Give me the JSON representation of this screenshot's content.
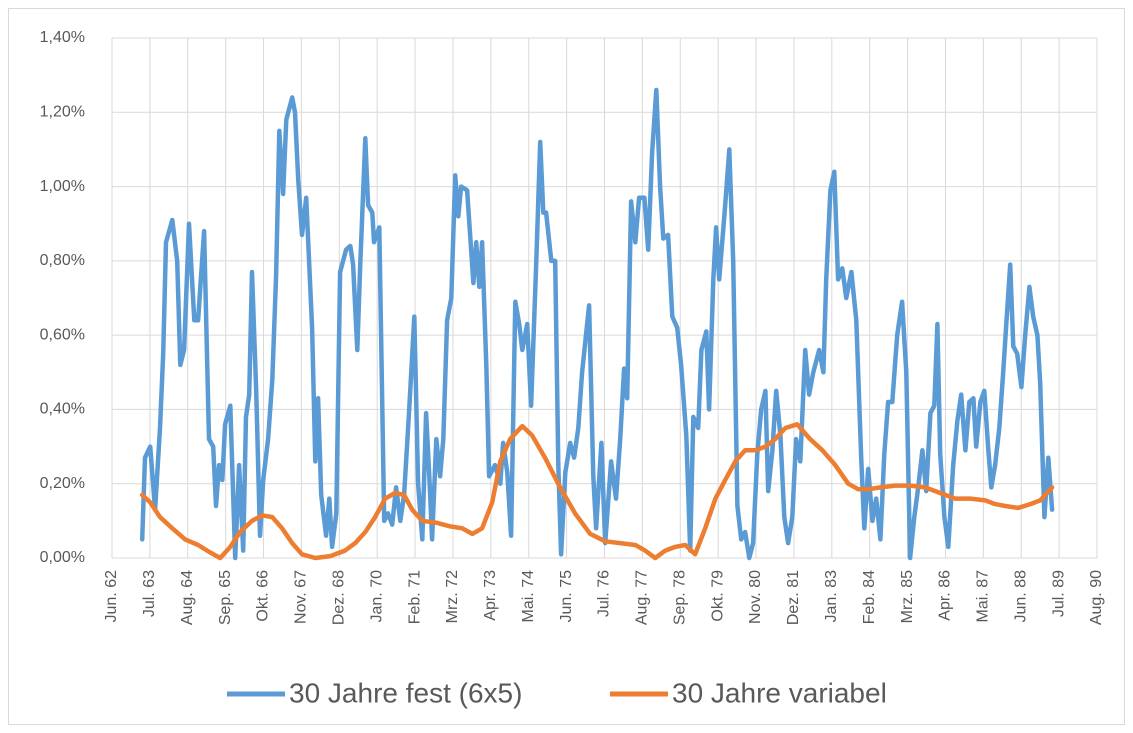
{
  "chart_data": {
    "type": "line",
    "xlim": [
      1962.417,
      1990.583
    ],
    "xticks": [
      {
        "value": 1962.417,
        "label": "Jun. 62"
      },
      {
        "value": 1963.5,
        "label": "Jul. 63"
      },
      {
        "value": 1964.583,
        "label": "Aug. 64"
      },
      {
        "value": 1965.667,
        "label": "Sep. 65"
      },
      {
        "value": 1966.75,
        "label": "Okt. 66"
      },
      {
        "value": 1967.833,
        "label": "Nov. 67"
      },
      {
        "value": 1968.917,
        "label": "Dez. 68"
      },
      {
        "value": 1970,
        "label": "Jan. 70"
      },
      {
        "value": 1971.083,
        "label": "Feb. 71"
      },
      {
        "value": 1972.167,
        "label": "Mrz. 72"
      },
      {
        "value": 1973.25,
        "label": "Apr. 73"
      },
      {
        "value": 1974.333,
        "label": "Mai. 74"
      },
      {
        "value": 1975.417,
        "label": "Jun. 75"
      },
      {
        "value": 1976.5,
        "label": "Jul. 76"
      },
      {
        "value": 1977.583,
        "label": "Aug. 77"
      },
      {
        "value": 1978.667,
        "label": "Sep. 78"
      },
      {
        "value": 1979.75,
        "label": "Okt. 79"
      },
      {
        "value": 1980.833,
        "label": "Nov. 80"
      },
      {
        "value": 1981.917,
        "label": "Dez. 81"
      },
      {
        "value": 1983,
        "label": "Jan. 83"
      },
      {
        "value": 1984.083,
        "label": "Feb. 84"
      },
      {
        "value": 1985.167,
        "label": "Mrz. 85"
      },
      {
        "value": 1986.25,
        "label": "Apr. 86"
      },
      {
        "value": 1987.333,
        "label": "Mai. 87"
      },
      {
        "value": 1988.417,
        "label": "Jun. 88"
      },
      {
        "value": 1989.5,
        "label": "Jul. 89"
      },
      {
        "value": 1990.583,
        "label": "Aug. 90"
      }
    ],
    "ylim": [
      0,
      1.4
    ],
    "yticks": [
      {
        "value": 0,
        "label": "0,00%"
      },
      {
        "value": 0.2,
        "label": "0,20%"
      },
      {
        "value": 0.4,
        "label": "0,40%"
      },
      {
        "value": 0.6,
        "label": "0,60%"
      },
      {
        "value": 0.8,
        "label": "0,80%"
      },
      {
        "value": 1.0,
        "label": "1,00%"
      },
      {
        "value": 1.2,
        "label": "1,20%"
      },
      {
        "value": 1.4,
        "label": "1,40%"
      }
    ],
    "grid": true,
    "legend": "bottom",
    "series": [
      {
        "name": "30 Jahre fest (6x5)",
        "color": "#5b9bd5",
        "x": [
          1963.28,
          1963.36,
          1963.51,
          1963.65,
          1963.79,
          1963.88,
          1963.96,
          1964.14,
          1964.28,
          1964.37,
          1964.48,
          1964.62,
          1964.77,
          1964.88,
          1965.05,
          1965.19,
          1965.31,
          1965.39,
          1965.48,
          1965.57,
          1965.65,
          1965.8,
          1965.94,
          1966.05,
          1966.17,
          1966.25,
          1966.34,
          1966.42,
          1966.54,
          1966.65,
          1966.74,
          1966.88,
          1967.0,
          1967.11,
          1967.2,
          1967.31,
          1967.4,
          1967.57,
          1967.65,
          1967.74,
          1967.85,
          1967.97,
          1968.14,
          1968.23,
          1968.31,
          1968.4,
          1968.54,
          1968.63,
          1968.71,
          1968.83,
          1968.94,
          1969.11,
          1969.23,
          1969.31,
          1969.43,
          1969.51,
          1969.66,
          1969.74,
          1969.86,
          1969.91,
          1970.06,
          1970.2,
          1970.31,
          1970.43,
          1970.54,
          1970.66,
          1970.77,
          1970.91,
          1971.06,
          1971.17,
          1971.29,
          1971.4,
          1971.49,
          1971.57,
          1971.69,
          1971.8,
          1971.89,
          1972.0,
          1972.12,
          1972.23,
          1972.32,
          1972.4,
          1972.57,
          1972.75,
          1972.83,
          1972.92,
          1973.0,
          1973.12,
          1973.2,
          1973.37,
          1973.52,
          1973.6,
          1973.72,
          1973.83,
          1973.95,
          1974.06,
          1974.15,
          1974.29,
          1974.4,
          1974.55,
          1974.66,
          1974.75,
          1974.83,
          1974.98,
          1975.09,
          1975.18,
          1975.26,
          1975.38,
          1975.52,
          1975.63,
          1975.75,
          1975.86,
          1976.06,
          1976.18,
          1976.26,
          1976.41,
          1976.52,
          1976.69,
          1976.83,
          1976.95,
          1977.06,
          1977.15,
          1977.26,
          1977.38,
          1977.49,
          1977.64,
          1977.75,
          1977.86,
          1977.98,
          1978.09,
          1978.18,
          1978.32,
          1978.44,
          1978.58,
          1978.69,
          1978.84,
          1978.95,
          1979.04,
          1979.18,
          1979.27,
          1979.41,
          1979.49,
          1979.61,
          1979.69,
          1979.78,
          1979.95,
          1980.07,
          1980.18,
          1980.3,
          1980.41,
          1980.52,
          1980.64,
          1980.75,
          1980.87,
          1980.98,
          1981.1,
          1981.18,
          1981.3,
          1981.41,
          1981.53,
          1981.64,
          1981.75,
          1981.87,
          1981.98,
          1982.1,
          1982.24,
          1982.35,
          1982.47,
          1982.64,
          1982.76,
          1982.84,
          1982.96,
          1983.07,
          1983.18,
          1983.3,
          1983.41,
          1983.56,
          1983.7,
          1983.84,
          1983.93,
          1984.04,
          1984.16,
          1984.27,
          1984.39,
          1984.5,
          1984.61,
          1984.73,
          1984.87,
          1985.01,
          1985.13,
          1985.24,
          1985.36,
          1985.47,
          1985.59,
          1985.7,
          1985.82,
          1985.93,
          1986.02,
          1986.1,
          1986.22,
          1986.33,
          1986.47,
          1986.59,
          1986.7,
          1986.82,
          1986.93,
          1987.05,
          1987.13,
          1987.25,
          1987.36,
          1987.47,
          1987.56,
          1987.67,
          1987.79,
          1987.9,
          1987.99,
          1988.1,
          1988.19,
          1988.3,
          1988.42,
          1988.53,
          1988.65,
          1988.76,
          1988.88,
          1988.96,
          1989.08,
          1989.19,
          1989.3
        ],
        "values": [
          0.05,
          0.27,
          0.3,
          0.13,
          0.35,
          0.55,
          0.85,
          0.91,
          0.8,
          0.52,
          0.56,
          0.9,
          0.64,
          0.64,
          0.88,
          0.32,
          0.3,
          0.14,
          0.25,
          0.21,
          0.36,
          0.41,
          0.0,
          0.25,
          0.02,
          0.38,
          0.44,
          0.77,
          0.45,
          0.06,
          0.21,
          0.32,
          0.48,
          0.76,
          1.15,
          0.98,
          1.18,
          1.24,
          1.2,
          1.02,
          0.87,
          0.97,
          0.62,
          0.26,
          0.43,
          0.17,
          0.06,
          0.16,
          0.03,
          0.12,
          0.77,
          0.83,
          0.84,
          0.79,
          0.56,
          0.78,
          1.13,
          0.95,
          0.93,
          0.85,
          0.89,
          0.1,
          0.12,
          0.09,
          0.19,
          0.1,
          0.17,
          0.39,
          0.65,
          0.2,
          0.05,
          0.39,
          0.22,
          0.05,
          0.32,
          0.22,
          0.32,
          0.64,
          0.7,
          1.03,
          0.92,
          1.0,
          0.99,
          0.74,
          0.85,
          0.73,
          0.85,
          0.52,
          0.22,
          0.25,
          0.2,
          0.31,
          0.23,
          0.06,
          0.69,
          0.63,
          0.56,
          0.63,
          0.41,
          0.8,
          1.12,
          0.93,
          0.93,
          0.8,
          0.8,
          0.25,
          0.01,
          0.23,
          0.31,
          0.27,
          0.35,
          0.5,
          0.68,
          0.22,
          0.08,
          0.31,
          0.04,
          0.26,
          0.16,
          0.32,
          0.51,
          0.43,
          0.96,
          0.85,
          0.97,
          0.97,
          0.83,
          1.09,
          1.26,
          1.0,
          0.86,
          0.87,
          0.65,
          0.62,
          0.52,
          0.33,
          0.02,
          0.38,
          0.35,
          0.56,
          0.61,
          0.4,
          0.75,
          0.89,
          0.75,
          0.95,
          1.1,
          0.8,
          0.14,
          0.05,
          0.07,
          0.0,
          0.04,
          0.28,
          0.4,
          0.45,
          0.18,
          0.29,
          0.45,
          0.33,
          0.11,
          0.04,
          0.11,
          0.32,
          0.26,
          0.56,
          0.44,
          0.5,
          0.56,
          0.5,
          0.75,
          0.99,
          1.04,
          0.75,
          0.78,
          0.7,
          0.77,
          0.64,
          0.27,
          0.08,
          0.24,
          0.1,
          0.16,
          0.05,
          0.28,
          0.42,
          0.42,
          0.6,
          0.69,
          0.5,
          0.0,
          0.11,
          0.19,
          0.29,
          0.18,
          0.39,
          0.41,
          0.63,
          0.28,
          0.11,
          0.03,
          0.25,
          0.37,
          0.44,
          0.29,
          0.42,
          0.43,
          0.3,
          0.42,
          0.45,
          0.3,
          0.19,
          0.25,
          0.35,
          0.5,
          0.63,
          0.79,
          0.57,
          0.55,
          0.46,
          0.6,
          0.73,
          0.65,
          0.6,
          0.47,
          0.11,
          0.27,
          0.13
        ]
      },
      {
        "name": "30 Jahre variabel",
        "color": "#ed7d31",
        "x": [
          1963.28,
          1963.51,
          1963.79,
          1964.14,
          1964.51,
          1964.88,
          1965.22,
          1965.51,
          1965.8,
          1966.08,
          1966.42,
          1966.71,
          1967.0,
          1967.28,
          1967.57,
          1967.85,
          1968.23,
          1968.66,
          1969.08,
          1969.37,
          1969.66,
          1969.94,
          1970.23,
          1970.51,
          1970.77,
          1971.0,
          1971.29,
          1971.69,
          1972.09,
          1972.43,
          1972.72,
          1973.0,
          1973.29,
          1973.52,
          1973.8,
          1974.15,
          1974.43,
          1974.8,
          1975.23,
          1975.66,
          1976.09,
          1976.52,
          1976.95,
          1977.38,
          1977.66,
          1977.95,
          1978.24,
          1978.52,
          1978.81,
          1979.09,
          1979.38,
          1979.67,
          1979.95,
          1980.24,
          1980.52,
          1980.81,
          1981.1,
          1981.38,
          1981.67,
          1982.01,
          1982.38,
          1982.73,
          1983.1,
          1983.47,
          1983.76,
          1984.04,
          1984.39,
          1984.81,
          1985.24,
          1985.67,
          1986.1,
          1986.53,
          1986.96,
          1987.39,
          1987.67,
          1987.96,
          1988.33,
          1988.68,
          1988.96,
          1989.3
        ],
        "values": [
          0.17,
          0.15,
          0.11,
          0.08,
          0.05,
          0.035,
          0.015,
          0.0,
          0.03,
          0.07,
          0.1,
          0.115,
          0.11,
          0.08,
          0.04,
          0.01,
          0.0,
          0.005,
          0.02,
          0.04,
          0.07,
          0.11,
          0.16,
          0.175,
          0.17,
          0.13,
          0.1,
          0.095,
          0.085,
          0.08,
          0.065,
          0.08,
          0.15,
          0.26,
          0.32,
          0.355,
          0.33,
          0.27,
          0.19,
          0.12,
          0.065,
          0.045,
          0.04,
          0.035,
          0.02,
          0.0,
          0.02,
          0.03,
          0.035,
          0.01,
          0.08,
          0.16,
          0.21,
          0.26,
          0.29,
          0.29,
          0.3,
          0.32,
          0.35,
          0.36,
          0.32,
          0.29,
          0.25,
          0.2,
          0.185,
          0.185,
          0.19,
          0.195,
          0.195,
          0.19,
          0.175,
          0.16,
          0.16,
          0.155,
          0.145,
          0.14,
          0.135,
          0.145,
          0.155,
          0.19
        ]
      }
    ]
  }
}
